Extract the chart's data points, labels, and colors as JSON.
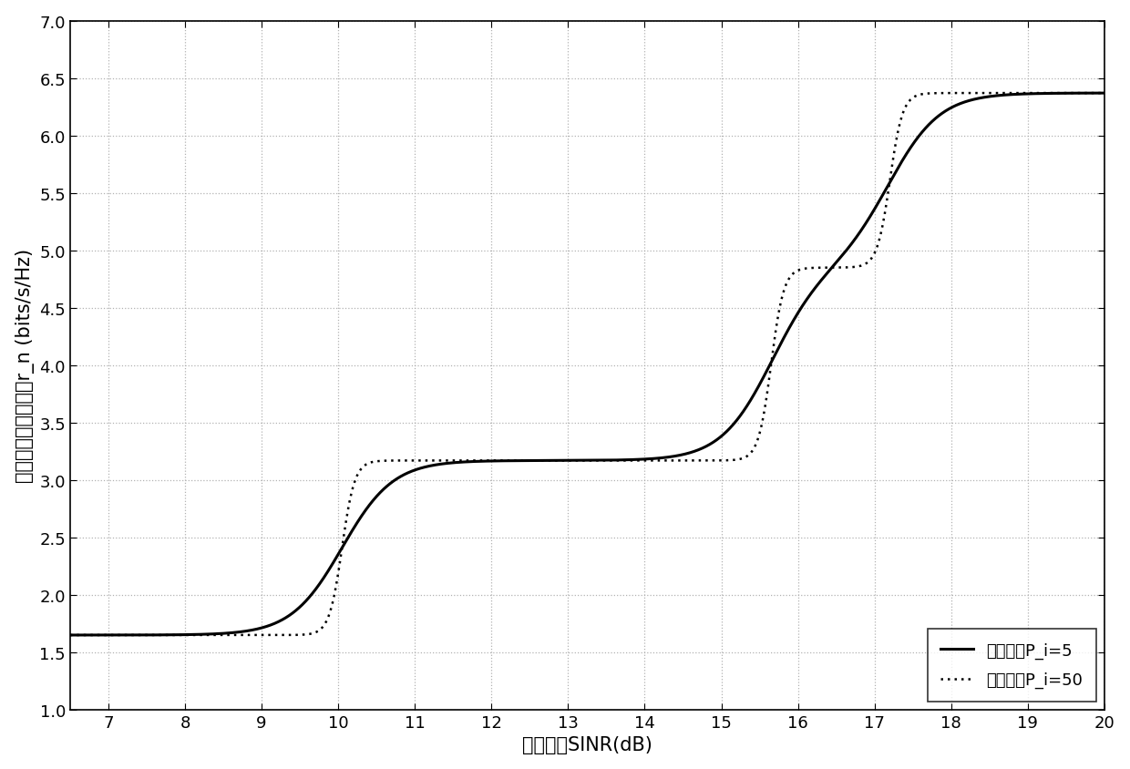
{
  "title": "",
  "xlabel": "信干噪比SINR(dB)",
  "ylabel": "认为用户的传输速率r_n (bits/s/Hz)",
  "xlim": [
    6.5,
    20
  ],
  "ylim": [
    1.0,
    7.0
  ],
  "xticks": [
    7,
    8,
    9,
    10,
    11,
    12,
    13,
    14,
    15,
    16,
    17,
    18,
    19,
    20
  ],
  "yticks": [
    1.0,
    1.5,
    2.0,
    2.5,
    3.0,
    3.5,
    4.0,
    4.5,
    5.0,
    5.5,
    6.0,
    6.5,
    7.0
  ],
  "legend": [
    "曲率系数P_i=5",
    "曲率系数P_i=50"
  ],
  "grid_color": "#aaaaaa",
  "line_color": "#000000",
  "background_color": "#ffffff",
  "slope_low": 3.0,
  "slope_high": 12.0,
  "thresholds": [
    10.05,
    15.65,
    17.2
  ],
  "rates": [
    1.65,
    3.17,
    4.85,
    6.37
  ],
  "fontsize_label": 15,
  "fontsize_tick": 13,
  "fontsize_legend": 13
}
